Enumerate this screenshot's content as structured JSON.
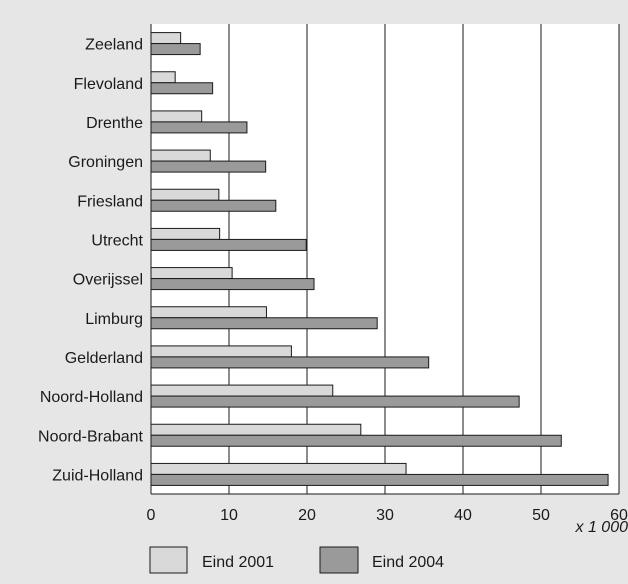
{
  "chart_data": {
    "type": "bar",
    "orientation": "horizontal",
    "categories": [
      "Zeeland",
      "Flevoland",
      "Drenthe",
      "Groningen",
      "Friesland",
      "Utrecht",
      "Overijssel",
      "Limburg",
      "Gelderland",
      "Noord-Holland",
      "Noord-Brabant",
      "Zuid-Holland"
    ],
    "series": [
      {
        "name": "Eind 2001",
        "color": "#d9d9d9",
        "values": [
          3.8,
          3.1,
          6.5,
          7.6,
          8.7,
          8.8,
          10.4,
          14.8,
          18.0,
          23.3,
          26.9,
          32.7
        ]
      },
      {
        "name": "Eind 2004",
        "color": "#9a9a9a",
        "values": [
          6.3,
          7.9,
          12.3,
          14.7,
          16.0,
          19.9,
          20.9,
          29.0,
          35.6,
          47.2,
          52.6,
          58.6
        ]
      }
    ],
    "xlim": [
      0,
      60
    ],
    "xticks": [
      "0",
      "10",
      "20",
      "30",
      "40",
      "50",
      "60"
    ],
    "x_unit_label": "x 1 000",
    "grid": "vertical",
    "legend_position": "bottom"
  }
}
